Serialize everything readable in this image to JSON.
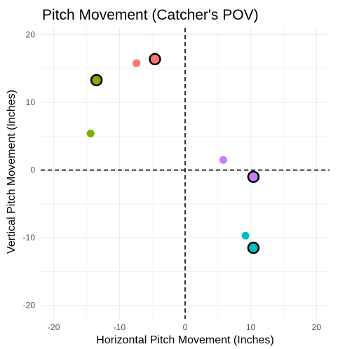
{
  "chart_data": {
    "type": "scatter",
    "title": "Pitch Movement (Catcher's POV)",
    "xlabel": "Horizontal Pitch Movement (Inches)",
    "ylabel": "Vertical Pitch Movement (Inches)",
    "xlim": [
      -22,
      22
    ],
    "ylim": [
      -22,
      21
    ],
    "xticks": [
      -20,
      -10,
      0,
      10,
      20
    ],
    "yticks": [
      -20,
      -10,
      0,
      10,
      20
    ],
    "grid": true,
    "legend": "none",
    "reference_lines": {
      "x": 0,
      "y": 0,
      "style": "dashed"
    },
    "series": [
      {
        "color": "#F8766D",
        "points": [
          {
            "x": -7.4,
            "y": 15.8,
            "highlighted": false
          },
          {
            "x": -4.6,
            "y": 16.4,
            "highlighted": true
          }
        ]
      },
      {
        "color": "#7CAE00",
        "points": [
          {
            "x": -14.4,
            "y": 5.4,
            "highlighted": false
          },
          {
            "x": -13.5,
            "y": 13.3,
            "highlighted": true
          }
        ]
      },
      {
        "color": "#C77CFF",
        "points": [
          {
            "x": 5.8,
            "y": 1.5,
            "highlighted": false
          },
          {
            "x": 10.4,
            "y": -1.0,
            "highlighted": true
          }
        ]
      },
      {
        "color": "#00BFC4",
        "points": [
          {
            "x": 9.2,
            "y": -9.7,
            "highlighted": false
          },
          {
            "x": 10.4,
            "y": -11.5,
            "highlighted": true
          }
        ]
      }
    ]
  }
}
